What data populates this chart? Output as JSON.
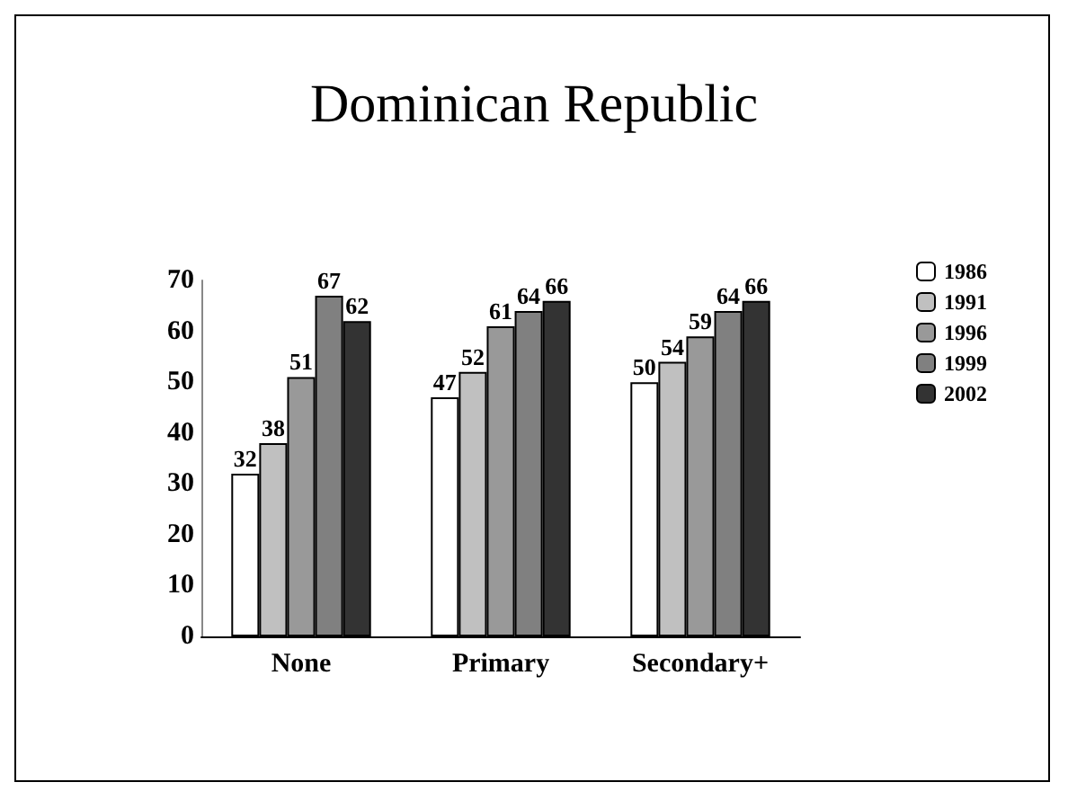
{
  "chart_data": {
    "type": "bar",
    "title": "Dominican Republic",
    "categories": [
      "None",
      "Primary",
      "Secondary+"
    ],
    "series": [
      {
        "name": "1986",
        "color": "#ffffff",
        "values": [
          32,
          47,
          50
        ]
      },
      {
        "name": "1991",
        "color": "#c0c0c0",
        "values": [
          38,
          52,
          54
        ]
      },
      {
        "name": "1996",
        "color": "#999999",
        "values": [
          51,
          61,
          59
        ]
      },
      {
        "name": "1999",
        "color": "#808080",
        "values": [
          67,
          64,
          64
        ]
      },
      {
        "name": "2002",
        "color": "#333333",
        "values": [
          62,
          66,
          66
        ]
      }
    ],
    "ylim": [
      0,
      70
    ],
    "yticks": [
      0,
      10,
      20,
      30,
      40,
      50,
      60,
      70
    ],
    "grid": false,
    "legend": "top right",
    "data_labels": true
  }
}
